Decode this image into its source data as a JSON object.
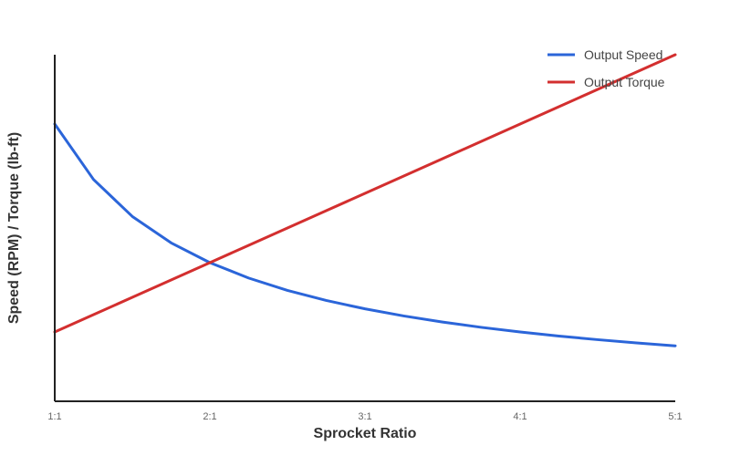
{
  "chart_data": {
    "type": "line",
    "title": "",
    "xlabel": "Sprocket Ratio",
    "ylabel": "Speed (RPM) / Torque (lb-ft)",
    "x": [
      1,
      1.25,
      1.5,
      1.75,
      2,
      2.25,
      2.5,
      2.75,
      3,
      3.25,
      3.5,
      3.75,
      4,
      4.25,
      4.5,
      4.75,
      5
    ],
    "x_ticks": [
      1,
      2,
      3,
      4,
      5
    ],
    "x_tick_labels": [
      "1:1",
      "2:1",
      "3:1",
      "4:1",
      "5:1"
    ],
    "xlim": [
      1,
      5
    ],
    "ylim": [
      0,
      100
    ],
    "y_ticks_shown": false,
    "grid": false,
    "legend_position": "top-right",
    "series": [
      {
        "name": "Output Speed",
        "color": "#2b65d9",
        "values": [
          80,
          64,
          53.33,
          45.71,
          40,
          35.56,
          32,
          29.09,
          26.67,
          24.62,
          22.86,
          21.33,
          20,
          18.82,
          17.78,
          16.84,
          16
        ]
      },
      {
        "name": "Output Torque",
        "color": "#d32f2f",
        "values": [
          20,
          25,
          30,
          35,
          40,
          45,
          50,
          55,
          60,
          65,
          70,
          75,
          80,
          85,
          90,
          95,
          100
        ]
      }
    ]
  }
}
